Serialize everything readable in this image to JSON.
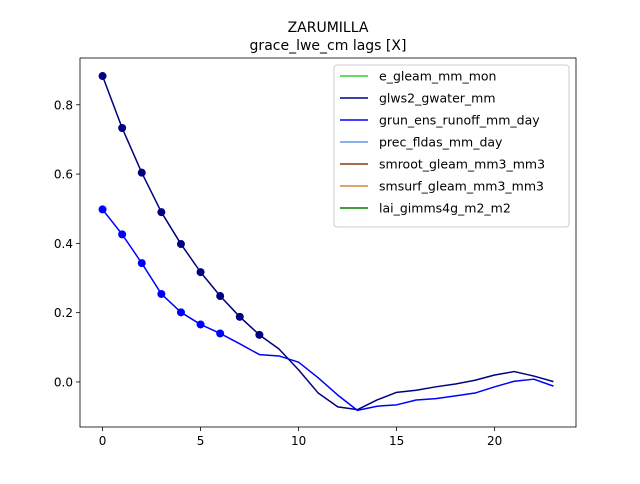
{
  "chart_data": {
    "type": "line",
    "title": "ZARUMILLA",
    "subtitle": "grace_lwe_cm lags [X]",
    "xlabel": "",
    "ylabel": "",
    "xlim": [
      -1.15,
      24.15
    ],
    "ylim": [
      -0.13,
      0.935
    ],
    "xticks": [
      0,
      5,
      10,
      15,
      20
    ],
    "yticks": [
      0.0,
      0.2,
      0.4,
      0.6,
      0.8
    ],
    "ytick_labels": [
      "0.0",
      "0.2",
      "0.4",
      "0.6",
      "0.8"
    ],
    "grid": false,
    "legend_position": "top-right",
    "series": [
      {
        "name": "e_gleam_mm_mon",
        "color": "#33cc33",
        "x": [],
        "y": []
      },
      {
        "name": "glws2_gwater_mm",
        "color": "#000080",
        "x": [
          0,
          1,
          2,
          3,
          4,
          5,
          6,
          7,
          8,
          9,
          10,
          11,
          12,
          13,
          14,
          15,
          16,
          17,
          18,
          19,
          20,
          21,
          22,
          23
        ],
        "y": [
          0.883,
          0.733,
          0.604,
          0.49,
          0.398,
          0.317,
          0.248,
          0.188,
          0.136,
          0.095,
          0.035,
          -0.032,
          -0.072,
          -0.08,
          -0.052,
          -0.03,
          -0.024,
          -0.014,
          -0.006,
          0.005,
          0.02,
          0.03,
          0.017,
          0.001
        ],
        "marker_x": [
          0,
          1,
          2,
          3,
          4,
          5,
          6,
          7,
          8
        ]
      },
      {
        "name": "grun_ens_runoff_mm_day",
        "color": "#0000ff",
        "x": [
          0,
          1,
          2,
          3,
          4,
          5,
          6,
          7,
          8,
          9,
          10,
          11,
          12,
          13,
          14,
          15,
          16,
          17,
          18,
          19,
          20,
          21,
          22,
          23
        ],
        "y": [
          0.498,
          0.426,
          0.343,
          0.254,
          0.201,
          0.166,
          0.14,
          0.11,
          0.079,
          0.075,
          0.057,
          0.012,
          -0.038,
          -0.082,
          -0.07,
          -0.066,
          -0.052,
          -0.048,
          -0.04,
          -0.032,
          -0.014,
          0.002,
          0.008,
          -0.012
        ],
        "marker_x": [
          0,
          1,
          2,
          3,
          4,
          5,
          6
        ]
      },
      {
        "name": "prec_fldas_mm_day",
        "color": "#6495ed",
        "x": [],
        "y": []
      },
      {
        "name": "smroot_gleam_mm3_mm3",
        "color": "#8b3a0f",
        "x": [],
        "y": []
      },
      {
        "name": "smsurf_gleam_mm3_mm3",
        "color": "#cd853f",
        "x": [],
        "y": []
      },
      {
        "name": "lai_gimms4g_m2_m2",
        "color": "#008000",
        "x": [],
        "y": []
      }
    ]
  }
}
